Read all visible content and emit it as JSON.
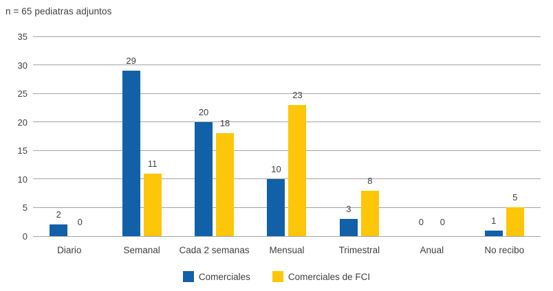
{
  "annotation": "n = 65 pediatras adjuntos",
  "colors": {
    "series_blue": "#1160a8",
    "series_yellow": "#fdc608",
    "gridline": "#a3a3a3",
    "text": "#3f3f3f",
    "background": "#ffffff"
  },
  "chart_data": {
    "type": "bar",
    "title": "n = 65 pediatras adjuntos",
    "categories": [
      "Diario",
      "Semanal",
      "Cada 2 semanas",
      "Mensual",
      "Trimestral",
      "Anual",
      "No recibo"
    ],
    "series": [
      {
        "name": "Comerciales",
        "color": "#1160a8",
        "values": [
          2,
          29,
          20,
          10,
          3,
          0,
          1
        ]
      },
      {
        "name": "Comerciales de FCI",
        "color": "#fdc608",
        "values": [
          0,
          11,
          18,
          23,
          8,
          0,
          5
        ]
      }
    ],
    "value_labels": [
      [
        "2",
        "29",
        "20",
        "10",
        "3",
        "0",
        "1"
      ],
      [
        "0",
        "11",
        "18",
        "23",
        "8",
        "0",
        "5"
      ]
    ],
    "xlabel": "",
    "ylabel": "",
    "ylim": [
      0,
      35
    ],
    "yticks": [
      0,
      5,
      10,
      15,
      20,
      25,
      30,
      35
    ],
    "grid": true,
    "legend_position": "bottom",
    "legend": [
      "Comerciales",
      "Comerciales de FCI"
    ]
  }
}
